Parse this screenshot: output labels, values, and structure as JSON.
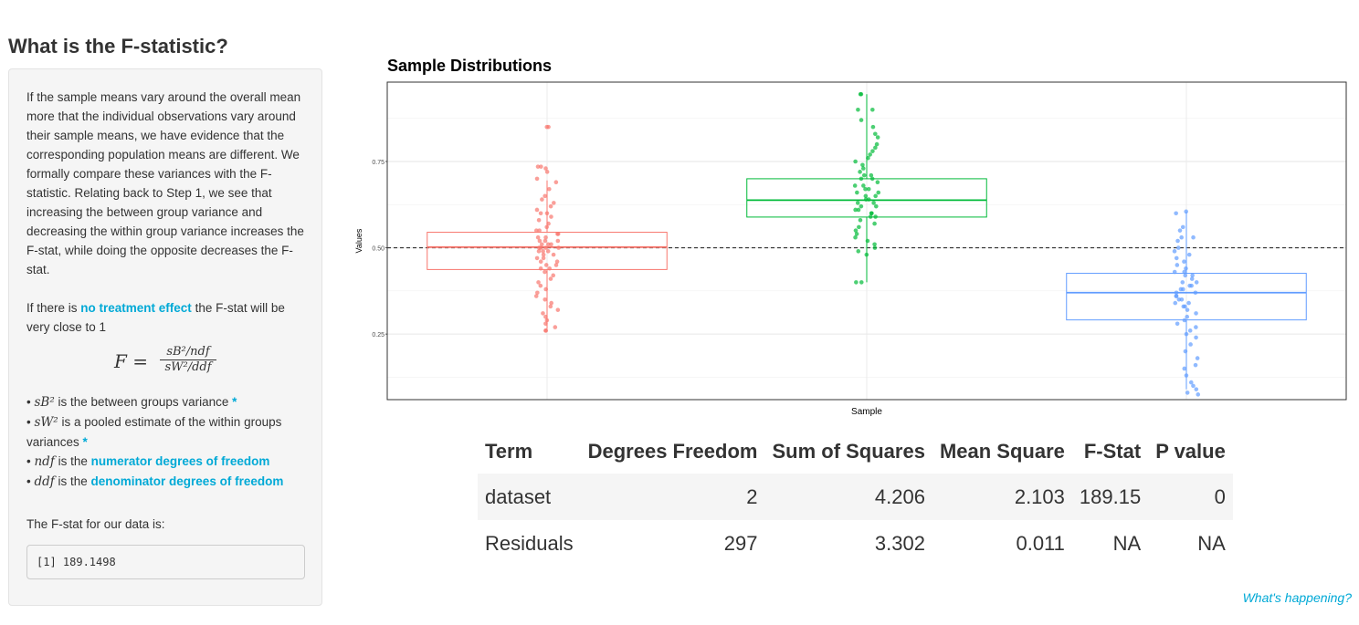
{
  "page": {
    "title": "What is the F-statistic?",
    "help_link": "What's happening?"
  },
  "sidebar": {
    "paragraph1": "If the sample means vary around the overall mean more that the individual observations vary around their sample means, we have evidence that the corresponding population means are different. We formally compare these variances with the F-statistic. Relating back to Step 1, we see that increasing the between group variance and decreasing the within group variance increases the F-stat, while doing the opposite decreases the F-stat.",
    "paragraph2_prefix": "If there is ",
    "paragraph2_link": "no treatment effect",
    "paragraph2_suffix": " the F-stat will be very close to 1",
    "equation": {
      "lhs": "F =",
      "numerator": "sB²/ndf",
      "denominator": "sW²/ddf"
    },
    "bullets": {
      "sb_symbol": "sB²",
      "sb_text": " is the between groups variance ",
      "sw_symbol": "sW²",
      "sw_text": " is a pooled estimate of the within groups variances ",
      "ndf_symbol": "ndf",
      "ndf_text": " is the ",
      "ndf_link": "numerator degrees of freedom",
      "ddf_symbol": "ddf",
      "ddf_text": " is the ",
      "ddf_link": "denominator degrees of freedom",
      "star": "*"
    },
    "output_label": "The F-stat for our data is:",
    "output_value": "[1] 189.1498"
  },
  "chart_data": {
    "type": "box",
    "title": "Sample Distributions",
    "xlabel": "Sample",
    "ylabel": "Values",
    "ylim": [
      0.06,
      0.98
    ],
    "yticks": [
      0.25,
      0.5,
      0.75
    ],
    "ytick_labels": [
      "0.25",
      "0.50",
      "0.75"
    ],
    "reference_line": 0.5,
    "grid": true,
    "groups": [
      {
        "color": "#F8766D",
        "q1": 0.437,
        "median": 0.502,
        "q3": 0.545,
        "whisker_low": 0.265,
        "whisker_high": 0.695
      },
      {
        "color": "#00BA38",
        "q1": 0.589,
        "median": 0.638,
        "q3": 0.7,
        "whisker_low": 0.4,
        "whisker_high": 0.945
      },
      {
        "color": "#619CFF",
        "q1": 0.291,
        "median": 0.37,
        "q3": 0.426,
        "whisker_low": 0.09,
        "whisker_high": 0.605
      }
    ],
    "points_per_group": 100,
    "jitter_points": [
      [
        0.85,
        0.85,
        0.735,
        0.735,
        0.73,
        0.72,
        0.7,
        0.69,
        0.67,
        0.65,
        0.64,
        0.63,
        0.62,
        0.61,
        0.6,
        0.6,
        0.59,
        0.58,
        0.57,
        0.56,
        0.55,
        0.55,
        0.54,
        0.54,
        0.53,
        0.53,
        0.52,
        0.52,
        0.52,
        0.51,
        0.51,
        0.51,
        0.5,
        0.5,
        0.5,
        0.5,
        0.49,
        0.49,
        0.49,
        0.48,
        0.48,
        0.47,
        0.47,
        0.46,
        0.46,
        0.45,
        0.45,
        0.44,
        0.44,
        0.43,
        0.42,
        0.41,
        0.4,
        0.39,
        0.38,
        0.37,
        0.36,
        0.35,
        0.34,
        0.33,
        0.32,
        0.31,
        0.3,
        0.29,
        0.28,
        0.27,
        0.26,
        0.26
      ],
      [
        0.945,
        0.945,
        0.9,
        0.9,
        0.87,
        0.85,
        0.83,
        0.82,
        0.8,
        0.79,
        0.78,
        0.77,
        0.76,
        0.75,
        0.74,
        0.73,
        0.72,
        0.71,
        0.71,
        0.7,
        0.7,
        0.69,
        0.68,
        0.68,
        0.67,
        0.67,
        0.66,
        0.66,
        0.65,
        0.65,
        0.64,
        0.64,
        0.63,
        0.63,
        0.62,
        0.62,
        0.61,
        0.61,
        0.6,
        0.6,
        0.59,
        0.59,
        0.58,
        0.57,
        0.56,
        0.55,
        0.54,
        0.53,
        0.52,
        0.51,
        0.5,
        0.49,
        0.48,
        0.4,
        0.4
      ],
      [
        0.605,
        0.6,
        0.56,
        0.55,
        0.53,
        0.53,
        0.52,
        0.5,
        0.49,
        0.48,
        0.47,
        0.46,
        0.45,
        0.44,
        0.43,
        0.43,
        0.42,
        0.42,
        0.41,
        0.4,
        0.4,
        0.39,
        0.39,
        0.38,
        0.38,
        0.37,
        0.37,
        0.36,
        0.36,
        0.35,
        0.35,
        0.34,
        0.34,
        0.33,
        0.33,
        0.32,
        0.31,
        0.3,
        0.29,
        0.28,
        0.27,
        0.26,
        0.25,
        0.24,
        0.22,
        0.2,
        0.18,
        0.16,
        0.15,
        0.13,
        0.11,
        0.1,
        0.09,
        0.08,
        0.075
      ]
    ]
  },
  "anova_table": {
    "headers": [
      "Term",
      "Degrees Freedom",
      "Sum of Squares",
      "Mean Square",
      "F-Stat",
      "P value"
    ],
    "rows": [
      [
        "dataset",
        "2",
        "4.206",
        "2.103",
        "189.15",
        "0"
      ],
      [
        "Residuals",
        "297",
        "3.302",
        "0.011",
        "NA",
        "NA"
      ]
    ]
  }
}
